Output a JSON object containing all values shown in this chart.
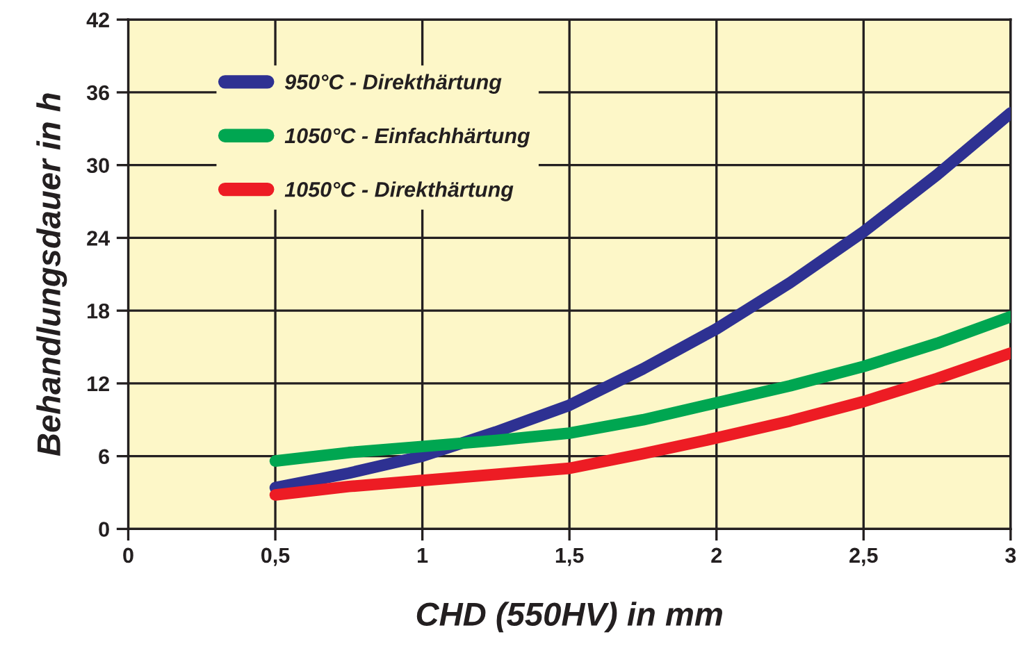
{
  "chart_data": {
    "type": "line",
    "xlabel": "CHD (550HV) in mm",
    "ylabel": "Behandlungsdauer in h",
    "x": [
      0.5,
      0.75,
      1.0,
      1.25,
      1.5,
      1.75,
      2.0,
      2.25,
      2.5,
      2.75,
      3.0
    ],
    "series": [
      {
        "name": "950°C - Direkthärtung",
        "color": "#2e3192",
        "values": [
          3.4,
          4.6,
          6.0,
          8.0,
          10.2,
          13.2,
          16.5,
          20.3,
          24.5,
          29.2,
          34.3
        ]
      },
      {
        "name": "1050°C - Einfachhärtung",
        "color": "#00a651",
        "values": [
          5.6,
          6.3,
          6.8,
          7.3,
          7.9,
          9.0,
          10.4,
          11.8,
          13.4,
          15.3,
          17.5
        ]
      },
      {
        "name": "1050°C - Direkthärtung",
        "color": "#ed1c24",
        "values": [
          2.8,
          3.5,
          4.0,
          4.5,
          5.0,
          6.2,
          7.5,
          8.9,
          10.5,
          12.4,
          14.5
        ]
      }
    ],
    "xlim": [
      0,
      3
    ],
    "ylim": [
      0,
      42
    ],
    "xticks": [
      0,
      {
        "value": 0.5,
        "label": "0,5"
      },
      1,
      {
        "value": 1.5,
        "label": "1,5"
      },
      2,
      {
        "value": 2.5,
        "label": "2,5"
      },
      3
    ],
    "yticks": [
      0,
      6,
      12,
      18,
      24,
      30,
      36,
      42
    ],
    "grid": true,
    "legend": "top left",
    "marker": "none",
    "line_style": "solid"
  }
}
